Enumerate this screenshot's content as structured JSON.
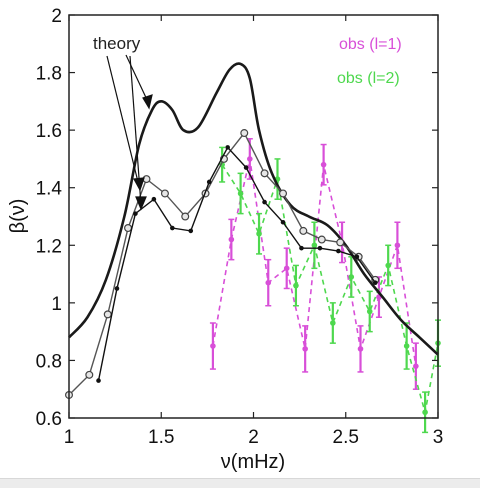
{
  "chart_data": {
    "type": "line",
    "xlabel": "ν(mHz)",
    "ylabel": "β(ν)",
    "xlim": [
      1,
      3
    ],
    "ylim": [
      0.6,
      2
    ],
    "xticks": [
      1,
      1.5,
      2,
      2.5,
      3
    ],
    "yticks": [
      0.6,
      0.8,
      1,
      1.2,
      1.4,
      1.6,
      1.8,
      2
    ],
    "grid": false,
    "annotations": [
      {
        "text": "theory",
        "color": "#222222"
      }
    ],
    "series": [
      {
        "style": "thick-solid",
        "color": "#1a1a1a",
        "x": [
          1.0,
          1.1,
          1.2,
          1.3,
          1.38,
          1.45,
          1.5,
          1.56,
          1.62,
          1.7,
          1.8,
          1.87,
          1.93,
          1.98,
          2.03,
          2.1,
          2.2,
          2.3,
          2.4,
          2.5,
          2.6,
          2.7,
          2.8,
          2.9,
          3.0
        ],
        "y": [
          0.88,
          0.95,
          1.08,
          1.3,
          1.55,
          1.67,
          1.7,
          1.67,
          1.6,
          1.61,
          1.73,
          1.81,
          1.83,
          1.78,
          1.6,
          1.45,
          1.34,
          1.3,
          1.27,
          1.2,
          1.1,
          1.02,
          0.94,
          0.88,
          0.82
        ]
      },
      {
        "style": "open-circles",
        "color": "#555555",
        "x": [
          1.0,
          1.11,
          1.21,
          1.32,
          1.42,
          1.52,
          1.63,
          1.74,
          1.84,
          1.95,
          2.06,
          2.16,
          2.27,
          2.37,
          2.47,
          2.57,
          2.66
        ],
        "y": [
          0.68,
          0.75,
          0.96,
          1.26,
          1.43,
          1.38,
          1.3,
          1.38,
          1.5,
          1.59,
          1.45,
          1.38,
          1.25,
          1.22,
          1.21,
          1.16,
          1.08
        ]
      },
      {
        "style": "filled-dots",
        "color": "#111111",
        "x": [
          1.16,
          1.26,
          1.36,
          1.46,
          1.56,
          1.66,
          1.76,
          1.86,
          1.96,
          2.06,
          2.16,
          2.26,
          2.36,
          2.46,
          2.56,
          2.66
        ],
        "y": [
          0.73,
          1.05,
          1.31,
          1.36,
          1.26,
          1.25,
          1.42,
          1.54,
          1.47,
          1.35,
          1.28,
          1.19,
          1.19,
          1.18,
          1.16,
          1.07
        ]
      }
    ],
    "obs": [
      {
        "name": "obs (l=1)",
        "color": "#d84fd8",
        "x": [
          1.78,
          1.88,
          1.98,
          2.08,
          2.18,
          2.28,
          2.38,
          2.48,
          2.58,
          2.68,
          2.78,
          2.88
        ],
        "y": [
          0.85,
          1.22,
          1.5,
          1.07,
          1.12,
          0.84,
          1.48,
          1.21,
          0.84,
          1.02,
          1.2,
          0.78
        ],
        "err": [
          0.08,
          0.07,
          0.07,
          0.08,
          0.07,
          0.08,
          0.07,
          0.07,
          0.08,
          0.07,
          0.08,
          0.08
        ]
      },
      {
        "name": "obs (l=2)",
        "color": "#4ed84e",
        "x": [
          1.83,
          1.93,
          2.03,
          2.13,
          2.23,
          2.33,
          2.43,
          2.53,
          2.63,
          2.73,
          2.83,
          2.93,
          3.0
        ],
        "y": [
          1.48,
          1.38,
          1.24,
          1.43,
          1.06,
          1.2,
          0.93,
          1.09,
          0.97,
          1.13,
          0.85,
          0.62,
          0.86
        ],
        "err": [
          0.06,
          0.07,
          0.07,
          0.07,
          0.07,
          0.08,
          0.07,
          0.07,
          0.07,
          0.07,
          0.08,
          0.07,
          0.08
        ]
      }
    ]
  }
}
